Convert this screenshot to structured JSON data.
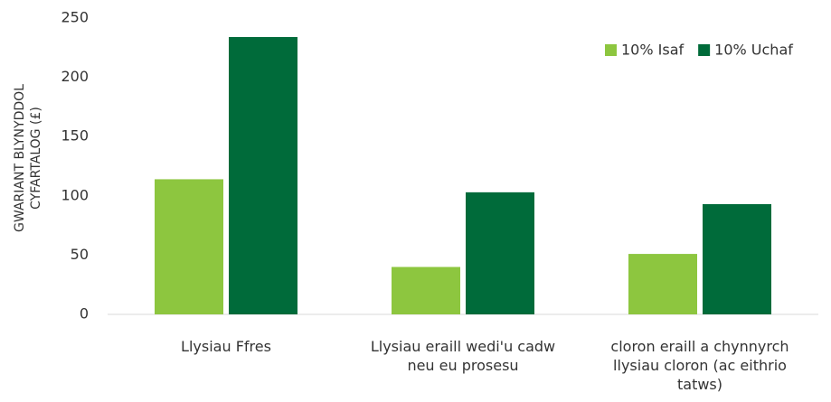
{
  "chart_data": {
    "type": "bar",
    "ylabel": [
      "GWARIANT BLYNYDDOL",
      "CYFARTALOG (£)"
    ],
    "categories": [
      "Llysiau Ffres",
      "Llysiau eraill wedi'u cadw neu eu prosesu",
      "cloron eraill a chynnyrch llysiau cloron (ac eithrio tatws)"
    ],
    "series": [
      {
        "name": "10% Isaf",
        "color": "#8dc63f",
        "values": [
          114,
          40,
          51
        ]
      },
      {
        "name": "10% Uchaf",
        "color": "#006b3a",
        "values": [
          234,
          103,
          93
        ]
      }
    ],
    "ylim": [
      0,
      250
    ],
    "yticks": [
      0,
      50,
      100,
      150,
      200,
      250
    ],
    "legend": "top-right"
  }
}
